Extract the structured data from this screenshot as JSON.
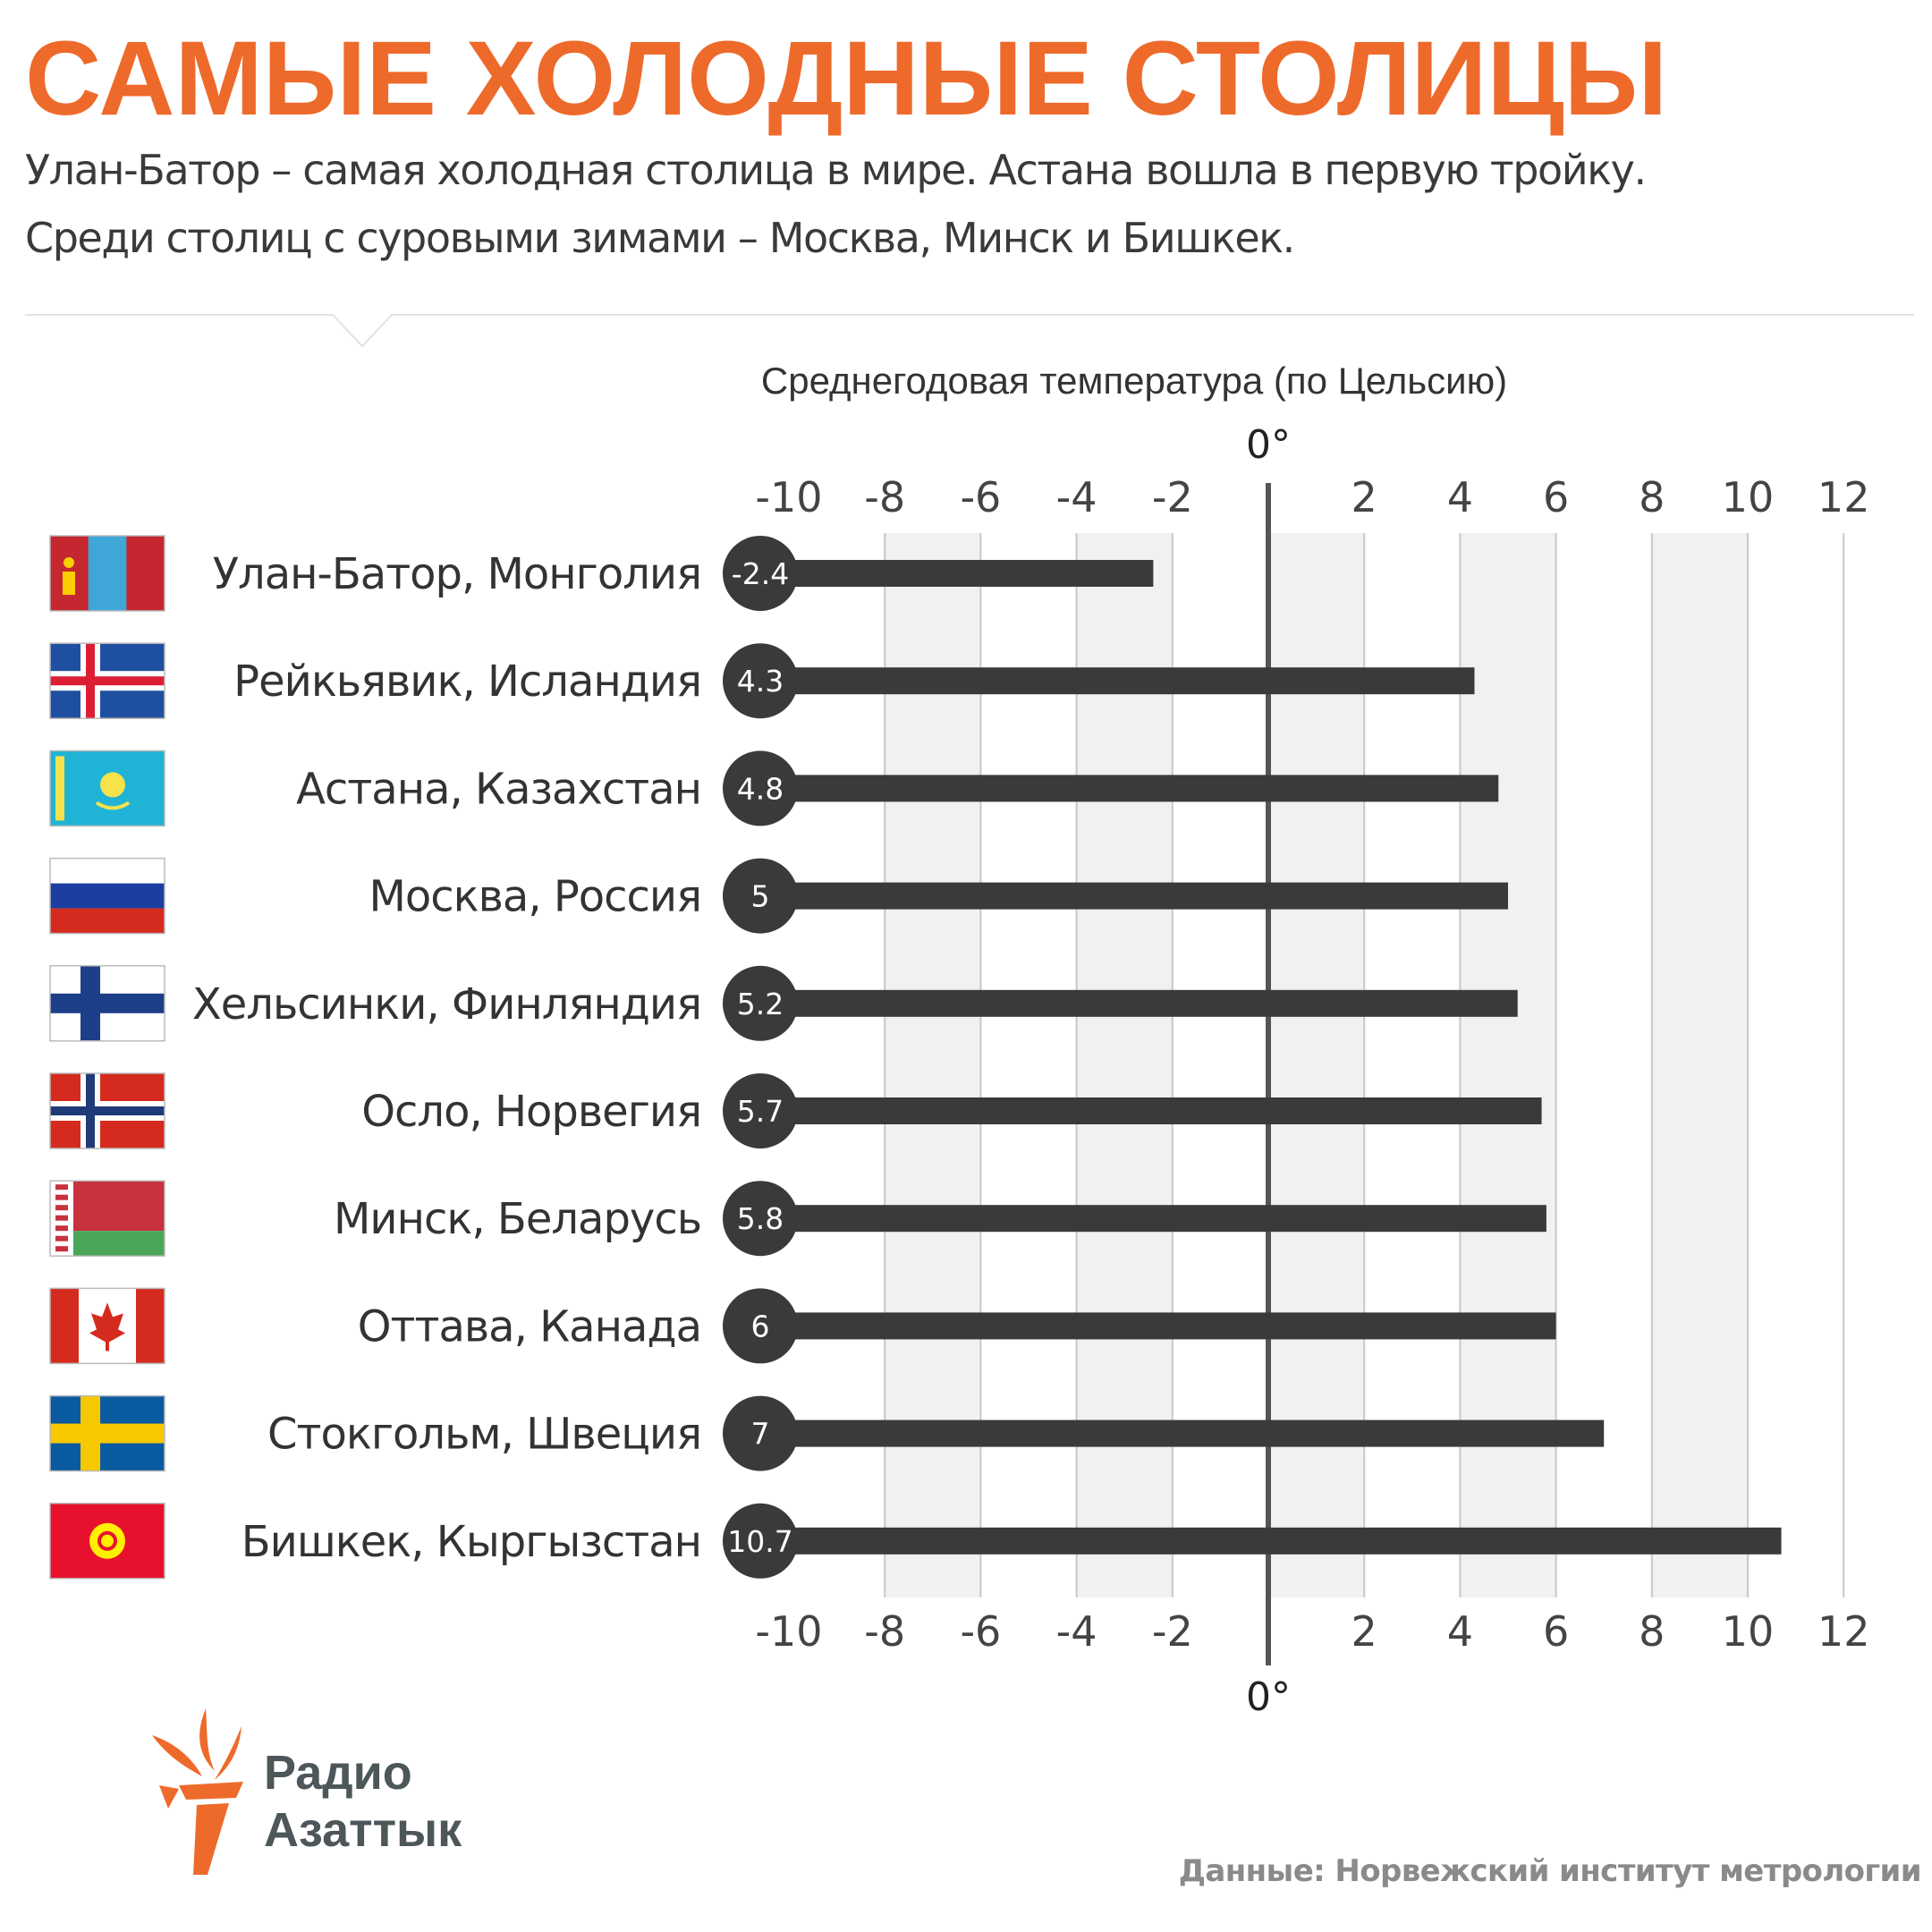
{
  "header": {
    "title": "САМЫЕ ХОЛОДНЫЕ СТОЛИЦЫ",
    "subtitle_line1": "Улан-Батор – самая холодная столица в мире. Астана вошла в первую тройку.",
    "subtitle_line2": "Среди столиц с суровыми зимами – Москва, Минск и Бишкек."
  },
  "chart_data": {
    "type": "bar",
    "orientation": "horizontal",
    "title": "Среднегодовая температура (по Цельсию)",
    "zero_label": "0°",
    "xlim": [
      -10,
      12
    ],
    "ticks": [
      -10,
      -8,
      -6,
      -4,
      -2,
      2,
      4,
      6,
      8,
      10,
      12
    ],
    "grid": "alternating shaded bands every 2 degrees",
    "categories": [
      "Улан-Батор, Монголия",
      "Рейкьявик, Исландия",
      "Астана, Казахстан",
      "Москва, Россия",
      "Хельсинки, Финляндия",
      "Осло, Норвегия",
      "Минск, Беларусь",
      "Оттава, Канада",
      "Стокгольм, Швеция",
      "Бишкек, Кыргызстан"
    ],
    "values": [
      -2.4,
      4.3,
      4.8,
      5,
      5.2,
      5.7,
      5.8,
      6,
      7,
      10.7
    ],
    "value_labels": [
      "-2.4",
      "4.3",
      "4.8",
      "5",
      "5.2",
      "5.7",
      "5.8",
      "6",
      "7",
      "10.7"
    ],
    "flags": [
      "mongolia",
      "iceland",
      "kazakhstan",
      "russia",
      "finland",
      "norway",
      "belarus",
      "canada",
      "sweden",
      "kyrgyzstan"
    ]
  },
  "branding": {
    "logo_line1": "Радио",
    "logo_line2": "Азаттык",
    "source": "Данные: Норвежский институт метрологии"
  },
  "colors": {
    "accent": "#ee6a2b",
    "bar": "#3a3a3a",
    "band": "#f0f1f0",
    "gridline": "#c8c8c8",
    "axis": "#555555"
  }
}
